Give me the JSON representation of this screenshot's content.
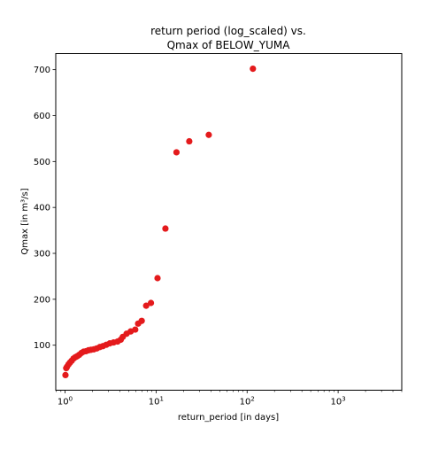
{
  "chart_data": {
    "type": "scatter",
    "title_line1": "return period (log_scaled) vs.",
    "title_line2": "Qmax of BELOW_YUMA",
    "xlabel": "return_period [in days]",
    "ylabel": "Qmax [in m³/s]",
    "x_scale": "log",
    "xlim": [
      0.79,
      5000
    ],
    "ylim": [
      2,
      735
    ],
    "x_ticks": [
      {
        "value": 1,
        "base": "10",
        "exp": "0"
      },
      {
        "value": 10,
        "base": "10",
        "exp": "1"
      },
      {
        "value": 100,
        "base": "10",
        "exp": "2"
      },
      {
        "value": 1000,
        "base": "10",
        "exp": "3"
      }
    ],
    "y_ticks": [
      100,
      200,
      300,
      400,
      500,
      600,
      700
    ],
    "y_tick_labels": [
      "100",
      "200",
      "300",
      "400",
      "500",
      "600",
      "700"
    ],
    "grid": false,
    "marker_color": "#e41a1c",
    "x": [
      1.01,
      1.03,
      1.05,
      1.09,
      1.13,
      1.18,
      1.24,
      1.3,
      1.36,
      1.43,
      1.51,
      1.6,
      1.7,
      1.81,
      1.93,
      2.07,
      2.23,
      2.41,
      2.61,
      2.84,
      3.1,
      3.41,
      3.77,
      4.09,
      4.3,
      4.74,
      5.26,
      5.9,
      6.35,
      6.95,
      7.78,
      8.78,
      10.37,
      12.66,
      16.75,
      23.15,
      37.91,
      115.8
    ],
    "y": [
      35,
      50,
      53,
      58,
      62,
      66,
      71,
      74,
      76,
      79,
      83,
      86,
      87,
      89,
      90,
      91,
      93,
      96,
      98,
      101,
      104,
      106,
      108,
      112,
      118,
      125,
      130,
      134,
      147,
      153,
      186,
      192,
      246,
      354,
      520,
      544,
      558,
      702
    ]
  }
}
